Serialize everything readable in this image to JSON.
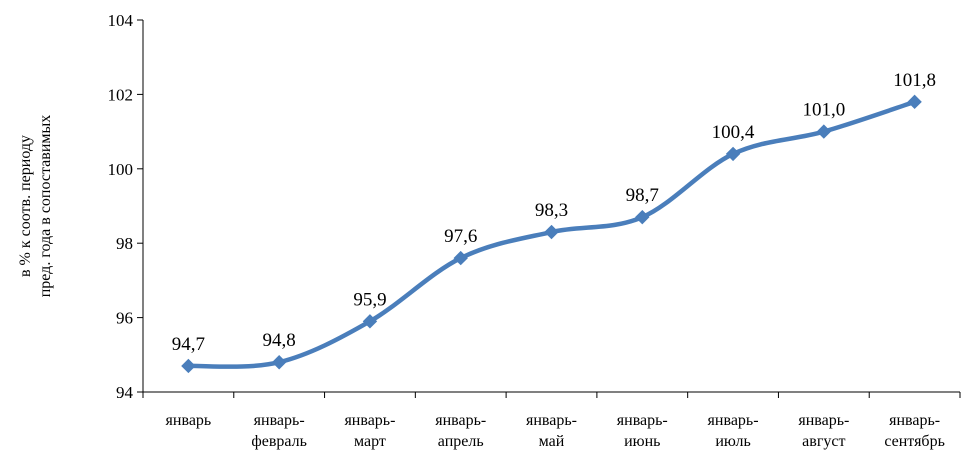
{
  "chart_data": {
    "type": "line",
    "categories": [
      [
        "январь"
      ],
      [
        "январь-",
        "февраль"
      ],
      [
        "январь-",
        "март"
      ],
      [
        "январь-",
        "апрель"
      ],
      [
        "январь-",
        "май"
      ],
      [
        "январь-",
        "июнь"
      ],
      [
        "январь-",
        "июль"
      ],
      [
        "январь-",
        "август"
      ],
      [
        "январь-",
        "сентябрь"
      ]
    ],
    "values": [
      94.7,
      94.8,
      95.9,
      97.6,
      98.3,
      98.7,
      100.4,
      101.0,
      101.8
    ],
    "data_labels": [
      "94,7",
      "94,8",
      "95,9",
      "97,6",
      "98,3",
      "98,7",
      "100,4",
      "101,0",
      "101,8"
    ],
    "ylabel": [
      "в % к соотв. периоду",
      "пред. года в сопоставимых"
    ],
    "ylim": [
      94,
      104
    ],
    "yticks": [
      94,
      96,
      98,
      100,
      102,
      104
    ],
    "ytick_labels": [
      "94",
      "96",
      "98",
      "100",
      "102",
      "104"
    ],
    "grid": false,
    "smooth": true,
    "marker": "diamond",
    "colors": {
      "series": "#4a7ebb",
      "axis": "#000000"
    }
  }
}
